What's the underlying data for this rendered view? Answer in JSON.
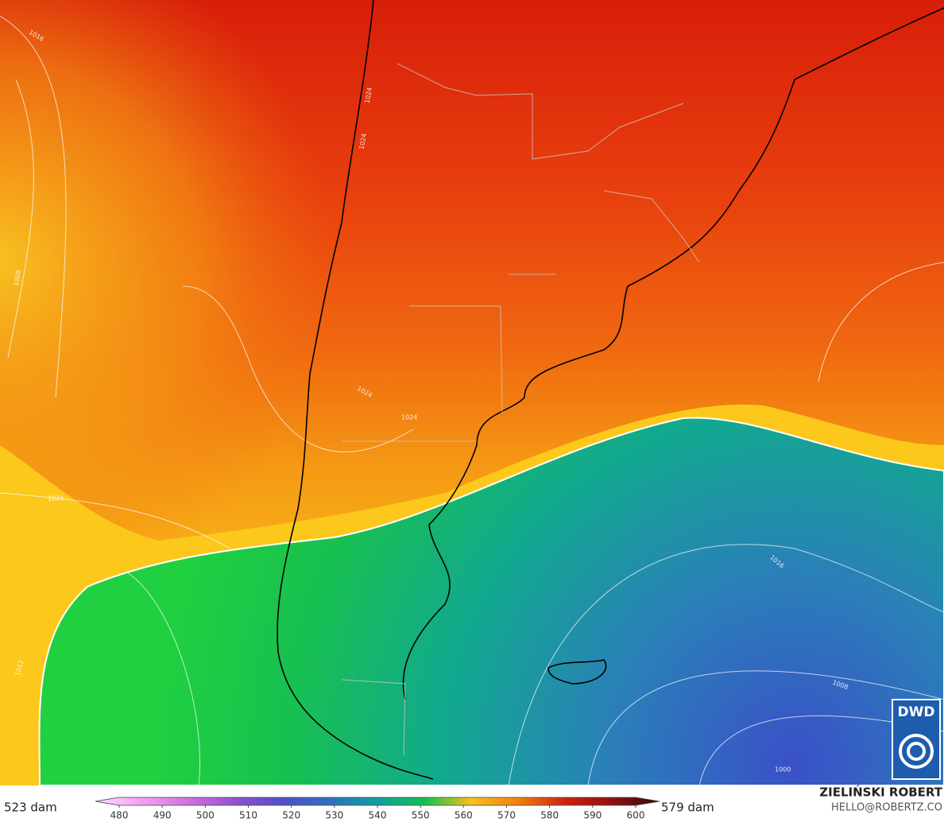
{
  "map": {
    "isobars": {
      "labels": [
        "1016",
        "1008",
        "1024",
        "1024",
        "1024",
        "1024",
        "1024",
        "1012",
        "1016",
        "1008",
        "1000"
      ]
    },
    "colorbar": {
      "min_label": "523 dam",
      "max_label": "579 dam",
      "ticks": [
        480,
        490,
        500,
        510,
        520,
        530,
        540,
        550,
        560,
        570,
        580,
        590,
        600
      ],
      "colors": [
        "#fbe0fb",
        "#f0a0f0",
        "#d070e0",
        "#9050d0",
        "#5050c8",
        "#3070c0",
        "#10a0a0",
        "#10c050",
        "#f8c020",
        "#f08010",
        "#d02010",
        "#901010",
        "#300808"
      ]
    },
    "credit": {
      "name": "ZIELIŃSKI ROBERT",
      "contact": "HELLO@ROBERTZ.CO"
    },
    "logo": {
      "text": "DWD"
    }
  }
}
